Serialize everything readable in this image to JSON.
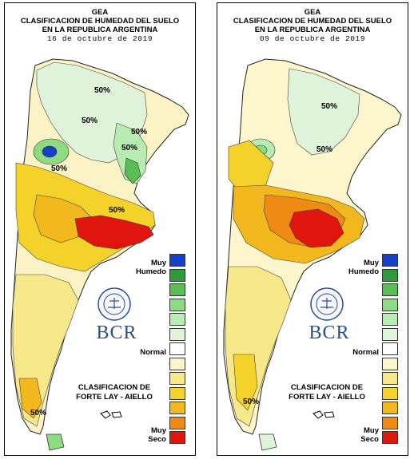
{
  "panels": [
    {
      "title_lines": [
        "GEA",
        "CLASIFICACION DE HUMEDAD DEL SUELO",
        "EN LA REPUBLICA ARGENTINA"
      ],
      "date": "16 de octubre de 2019",
      "contour_labels": [
        "50%",
        "50%",
        "50%",
        "50%",
        "50%",
        "50%",
        "50%"
      ]
    },
    {
      "title_lines": [
        "GEA",
        "CLASIFICACION DE HUMEDAD DEL SUELO",
        "EN LA REPUBLICA ARGENTINA"
      ],
      "date": "09 de octubre de 2019",
      "contour_labels": [
        "50%",
        "50%",
        "50%"
      ]
    }
  ],
  "legend": {
    "top_label_lines": [
      "Muy",
      "Humedo"
    ],
    "normal_label": "Normal",
    "bottom_label_lines": [
      "Muy",
      "Seco"
    ],
    "colors": [
      "#1740c8",
      "#2e9a3a",
      "#59bf52",
      "#8fdb84",
      "#b9ecb3",
      "#e0f4dc",
      "#ffffff",
      "#fdf5cc",
      "#f7e88a",
      "#f5d22a",
      "#f3b81d",
      "#ef8a12",
      "#e0160e"
    ]
  },
  "logo": {
    "text": "BCR",
    "seal_text": "BOLSA DE COMERCIO DE ROSARIO"
  },
  "source_lines": [
    "CLASIFICACION DE",
    "FORTE LAY - AIELLO"
  ]
}
